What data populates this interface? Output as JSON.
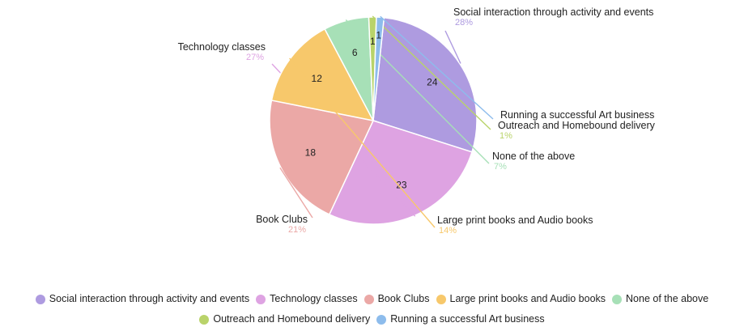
{
  "chart_data": {
    "type": "pie",
    "title": "",
    "legend_position": "bottom",
    "slices": [
      {
        "label": "Social interaction through activity and events",
        "value": 24,
        "percent": "28%",
        "color": "#ae9be0"
      },
      {
        "label": "Technology classes",
        "value": 23,
        "percent": "27%",
        "color": "#dea3e2"
      },
      {
        "label": "Book Clubs",
        "value": 18,
        "percent": "21%",
        "color": "#eba8a6"
      },
      {
        "label": "Large print books and Audio books",
        "value": 12,
        "percent": "14%",
        "color": "#f7c86b"
      },
      {
        "label": "None of the above",
        "value": 6,
        "percent": "7%",
        "color": "#a7e0b7"
      },
      {
        "label": "Outreach and Homebound delivery",
        "value": 1,
        "percent": "1%",
        "color": "#b9d36a"
      },
      {
        "label": "Running a successful Art business",
        "value": 1,
        "percent": "",
        "color": "#8dbcec"
      }
    ]
  }
}
